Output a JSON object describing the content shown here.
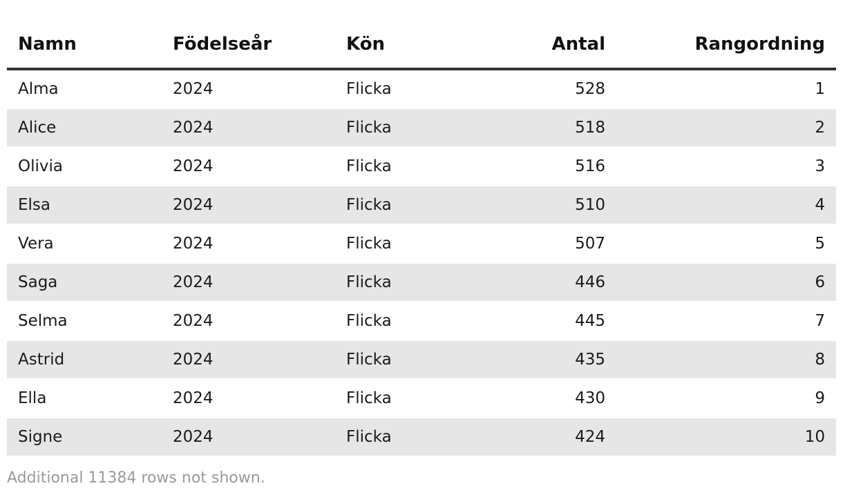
{
  "table": {
    "headers": {
      "name": "Namn",
      "year": "Födelseår",
      "sex": "Kön",
      "count": "Antal",
      "rank": "Rangordning"
    },
    "rows": [
      {
        "name": "Alma",
        "year": "2024",
        "sex": "Flicka",
        "count": "528",
        "rank": "1"
      },
      {
        "name": "Alice",
        "year": "2024",
        "sex": "Flicka",
        "count": "518",
        "rank": "2"
      },
      {
        "name": "Olivia",
        "year": "2024",
        "sex": "Flicka",
        "count": "516",
        "rank": "3"
      },
      {
        "name": "Elsa",
        "year": "2024",
        "sex": "Flicka",
        "count": "510",
        "rank": "4"
      },
      {
        "name": "Vera",
        "year": "2024",
        "sex": "Flicka",
        "count": "507",
        "rank": "5"
      },
      {
        "name": "Saga",
        "year": "2024",
        "sex": "Flicka",
        "count": "446",
        "rank": "6"
      },
      {
        "name": "Selma",
        "year": "2024",
        "sex": "Flicka",
        "count": "445",
        "rank": "7"
      },
      {
        "name": "Astrid",
        "year": "2024",
        "sex": "Flicka",
        "count": "435",
        "rank": "8"
      },
      {
        "name": "Ella",
        "year": "2024",
        "sex": "Flicka",
        "count": "430",
        "rank": "9"
      },
      {
        "name": "Signe",
        "year": "2024",
        "sex": "Flicka",
        "count": "424",
        "rank": "10"
      }
    ]
  },
  "footer": {
    "note": "Additional 11384 rows not shown."
  },
  "colors": {
    "stripe": "#e6e6e6",
    "header_rule": "#333333",
    "footer_text": "#9a9a9a"
  }
}
